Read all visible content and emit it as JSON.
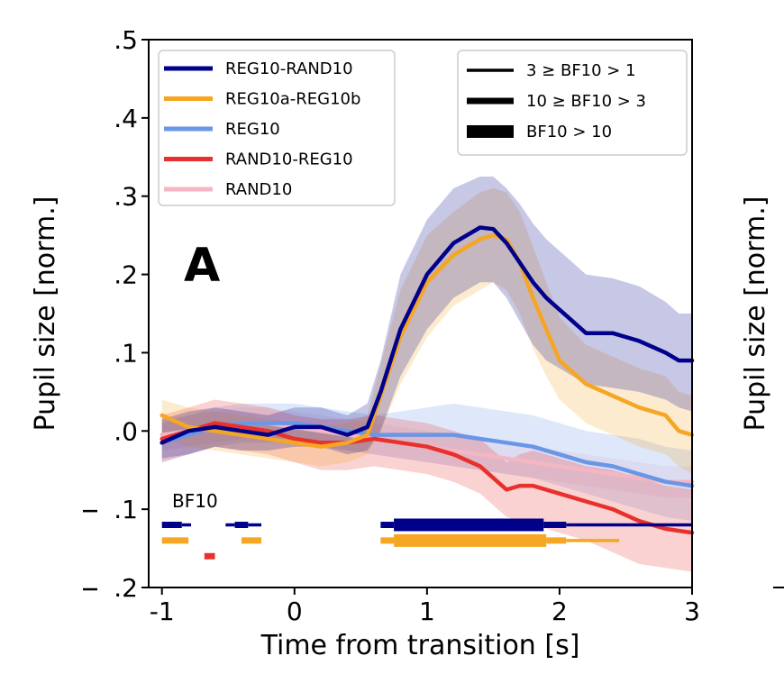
{
  "chart_data": {
    "type": "line",
    "title": "",
    "panel_letter": "A",
    "xlabel": "Time from transition [s]",
    "ylabel": "Pupil size [norm.]",
    "right_ylabel": "Pupil size [norm.]",
    "xlim": [
      -1.1,
      3.0
    ],
    "ylim": [
      -0.2,
      0.5
    ],
    "x_ticks": [
      -1,
      0,
      1,
      2,
      3
    ],
    "x_tick_labels": [
      "-1",
      "0",
      "1",
      "2",
      "3"
    ],
    "y_ticks": [
      0.5,
      0.4,
      0.3,
      0.2,
      0.1,
      0.0,
      -0.1,
      -0.2
    ],
    "y_tick_labels": [
      ".5",
      ".4",
      ".3",
      ".2",
      ".1",
      ".0",
      ".1",
      ".2"
    ],
    "y_tick_minus_prefix": [
      false,
      false,
      false,
      false,
      false,
      false,
      true,
      true
    ],
    "right_tick_marks": [
      -0.2
    ],
    "grid": false,
    "legend_placement": "top-left",
    "series": [
      {
        "name": "REG10-RAND10",
        "color": "#00008b",
        "x": [
          -1.0,
          -0.8,
          -0.6,
          -0.4,
          -0.2,
          0.0,
          0.2,
          0.4,
          0.55,
          0.65,
          0.8,
          1.0,
          1.2,
          1.4,
          1.5,
          1.6,
          1.7,
          1.8,
          1.9,
          2.0,
          2.2,
          2.4,
          2.6,
          2.8,
          2.9,
          3.0
        ],
        "y": [
          -0.015,
          0.0,
          0.005,
          0.0,
          -0.005,
          0.005,
          0.005,
          -0.005,
          0.005,
          0.05,
          0.13,
          0.2,
          0.24,
          0.26,
          0.258,
          0.24,
          0.215,
          0.19,
          0.17,
          0.155,
          0.125,
          0.125,
          0.115,
          0.1,
          0.09,
          0.09
        ],
        "lower": [
          -0.035,
          -0.03,
          -0.02,
          -0.025,
          -0.025,
          -0.02,
          -0.02,
          -0.03,
          -0.025,
          0.0,
          0.07,
          0.13,
          0.17,
          0.19,
          0.19,
          0.17,
          0.14,
          0.11,
          0.09,
          0.08,
          0.06,
          0.055,
          0.05,
          0.04,
          0.03,
          0.025
        ],
        "upper": [
          0.015,
          0.025,
          0.03,
          0.025,
          0.02,
          0.03,
          0.03,
          0.02,
          0.035,
          0.09,
          0.2,
          0.27,
          0.31,
          0.325,
          0.325,
          0.31,
          0.29,
          0.265,
          0.245,
          0.23,
          0.2,
          0.195,
          0.185,
          0.165,
          0.15,
          0.15
        ]
      },
      {
        "name": "REG10a-REG10b",
        "color": "#f5a623",
        "x": [
          -1.0,
          -0.8,
          -0.6,
          -0.4,
          -0.2,
          0.0,
          0.2,
          0.4,
          0.55,
          0.65,
          0.8,
          1.0,
          1.2,
          1.4,
          1.5,
          1.6,
          1.7,
          1.8,
          1.9,
          2.0,
          2.2,
          2.4,
          2.6,
          2.8,
          2.9,
          3.0
        ],
        "y": [
          0.02,
          0.005,
          0.0,
          -0.005,
          -0.01,
          -0.015,
          -0.02,
          -0.015,
          -0.005,
          0.045,
          0.12,
          0.19,
          0.225,
          0.245,
          0.25,
          0.245,
          0.215,
          0.17,
          0.13,
          0.09,
          0.06,
          0.045,
          0.03,
          0.02,
          0.0,
          -0.005
        ],
        "lower": [
          -0.005,
          -0.02,
          -0.025,
          -0.03,
          -0.035,
          -0.04,
          -0.045,
          -0.04,
          -0.03,
          0.0,
          0.06,
          0.12,
          0.16,
          0.18,
          0.19,
          0.18,
          0.15,
          0.105,
          0.07,
          0.04,
          0.01,
          -0.005,
          -0.02,
          -0.03,
          -0.045,
          -0.055
        ],
        "upper": [
          0.04,
          0.03,
          0.025,
          0.02,
          0.015,
          0.01,
          0.005,
          0.01,
          0.02,
          0.085,
          0.18,
          0.25,
          0.28,
          0.305,
          0.31,
          0.305,
          0.28,
          0.235,
          0.19,
          0.145,
          0.11,
          0.095,
          0.08,
          0.07,
          0.05,
          0.045
        ]
      },
      {
        "name": "REG10",
        "color": "#6a96e6",
        "x": [
          -1.0,
          -0.8,
          -0.6,
          -0.4,
          -0.2,
          0.0,
          0.2,
          0.4,
          0.6,
          0.8,
          1.0,
          1.2,
          1.4,
          1.6,
          1.8,
          2.0,
          2.2,
          2.4,
          2.6,
          2.8,
          3.0
        ],
        "y": [
          -0.015,
          -0.005,
          0.005,
          0.01,
          0.01,
          0.01,
          0.005,
          0.0,
          -0.005,
          -0.005,
          -0.005,
          -0.005,
          -0.01,
          -0.015,
          -0.02,
          -0.03,
          -0.04,
          -0.045,
          -0.055,
          -0.065,
          -0.07
        ],
        "lower": [
          -0.04,
          -0.03,
          -0.02,
          -0.015,
          -0.015,
          -0.015,
          -0.02,
          -0.025,
          -0.03,
          -0.035,
          -0.04,
          -0.045,
          -0.05,
          -0.055,
          -0.06,
          -0.07,
          -0.08,
          -0.09,
          -0.1,
          -0.11,
          -0.115
        ],
        "upper": [
          0.01,
          0.02,
          0.03,
          0.035,
          0.035,
          0.035,
          0.03,
          0.025,
          0.02,
          0.025,
          0.03,
          0.035,
          0.03,
          0.025,
          0.02,
          0.01,
          0.0,
          -0.005,
          -0.01,
          -0.02,
          -0.025
        ]
      },
      {
        "name": "RAND10-REG10",
        "color": "#e8312c",
        "x": [
          -1.0,
          -0.8,
          -0.6,
          -0.4,
          -0.2,
          0.0,
          0.2,
          0.4,
          0.6,
          0.8,
          1.0,
          1.2,
          1.4,
          1.5,
          1.6,
          1.7,
          1.8,
          2.0,
          2.2,
          2.4,
          2.6,
          2.8,
          3.0
        ],
        "y": [
          -0.01,
          0.0,
          0.01,
          0.005,
          0.0,
          -0.01,
          -0.015,
          -0.015,
          -0.01,
          -0.015,
          -0.02,
          -0.03,
          -0.045,
          -0.06,
          -0.075,
          -0.07,
          -0.07,
          -0.08,
          -0.09,
          -0.1,
          -0.115,
          -0.125,
          -0.13
        ],
        "lower": [
          -0.04,
          -0.03,
          -0.02,
          -0.025,
          -0.03,
          -0.04,
          -0.05,
          -0.05,
          -0.045,
          -0.05,
          -0.055,
          -0.065,
          -0.08,
          -0.095,
          -0.11,
          -0.115,
          -0.12,
          -0.13,
          -0.14,
          -0.155,
          -0.17,
          -0.175,
          -0.18
        ],
        "upper": [
          0.02,
          0.03,
          0.04,
          0.035,
          0.03,
          0.02,
          0.015,
          0.015,
          0.02,
          0.015,
          0.01,
          0.0,
          -0.01,
          -0.025,
          -0.04,
          -0.03,
          -0.025,
          -0.035,
          -0.045,
          -0.05,
          -0.06,
          -0.07,
          -0.075
        ]
      },
      {
        "name": "RAND10",
        "color": "#f4b6c2",
        "x": [
          -1.0,
          -0.8,
          -0.6,
          -0.4,
          -0.2,
          0.0,
          0.2,
          0.4,
          0.6,
          0.8,
          1.0,
          1.2,
          1.4,
          1.6,
          1.8,
          2.0,
          2.2,
          2.4,
          2.6,
          2.8,
          3.0
        ],
        "y": [
          -0.005,
          0.0,
          0.005,
          0.01,
          0.01,
          0.005,
          0.0,
          -0.005,
          -0.01,
          -0.015,
          -0.02,
          -0.025,
          -0.03,
          -0.035,
          -0.04,
          -0.045,
          -0.05,
          -0.055,
          -0.06,
          -0.065,
          -0.065
        ],
        "lower": [
          -0.025,
          -0.02,
          -0.015,
          -0.01,
          -0.01,
          -0.015,
          -0.02,
          -0.025,
          -0.03,
          -0.035,
          -0.04,
          -0.045,
          -0.05,
          -0.055,
          -0.06,
          -0.065,
          -0.07,
          -0.075,
          -0.08,
          -0.085,
          -0.085
        ],
        "upper": [
          0.015,
          0.02,
          0.025,
          0.03,
          0.03,
          0.025,
          0.02,
          0.015,
          0.01,
          0.005,
          0.0,
          -0.005,
          -0.01,
          -0.015,
          -0.02,
          -0.025,
          -0.03,
          -0.035,
          -0.04,
          -0.045,
          -0.045
        ]
      }
    ],
    "bf_legend": [
      {
        "label": "3 ≥ BF10 > 1",
        "level": 1
      },
      {
        "label": "10 ≥ BF10 > 3",
        "level": 2
      },
      {
        "label": "BF10 > 10",
        "level": 3
      }
    ],
    "bf_title": "BF10",
    "bf_rows": [
      {
        "series": "REG10-RAND10",
        "color": "#00008b",
        "y": -0.12,
        "segments": [
          {
            "x0": -1.0,
            "x1": -0.85,
            "level": 2
          },
          {
            "x0": -0.85,
            "x1": -0.78,
            "level": 1
          },
          {
            "x0": -0.52,
            "x1": -0.45,
            "level": 1
          },
          {
            "x0": -0.45,
            "x1": -0.35,
            "level": 2
          },
          {
            "x0": -0.35,
            "x1": -0.25,
            "level": 1
          },
          {
            "x0": 0.65,
            "x1": 0.75,
            "level": 2
          },
          {
            "x0": 0.75,
            "x1": 1.88,
            "level": 3
          },
          {
            "x0": 1.88,
            "x1": 2.05,
            "level": 2
          },
          {
            "x0": 2.05,
            "x1": 3.0,
            "level": 1
          }
        ]
      },
      {
        "series": "REG10a-REG10b",
        "color": "#f5a623",
        "y": -0.14,
        "segments": [
          {
            "x0": -1.0,
            "x1": -0.8,
            "level": 2
          },
          {
            "x0": -0.4,
            "x1": -0.25,
            "level": 2
          },
          {
            "x0": 0.65,
            "x1": 0.75,
            "level": 2
          },
          {
            "x0": 0.75,
            "x1": 1.9,
            "level": 3
          },
          {
            "x0": 1.9,
            "x1": 2.05,
            "level": 2
          },
          {
            "x0": 2.05,
            "x1": 2.45,
            "level": 1
          }
        ]
      },
      {
        "series": "RAND10-REG10",
        "color": "#e8312c",
        "y": -0.16,
        "segments": [
          {
            "x0": -0.68,
            "x1": -0.6,
            "level": 2
          }
        ]
      }
    ]
  }
}
